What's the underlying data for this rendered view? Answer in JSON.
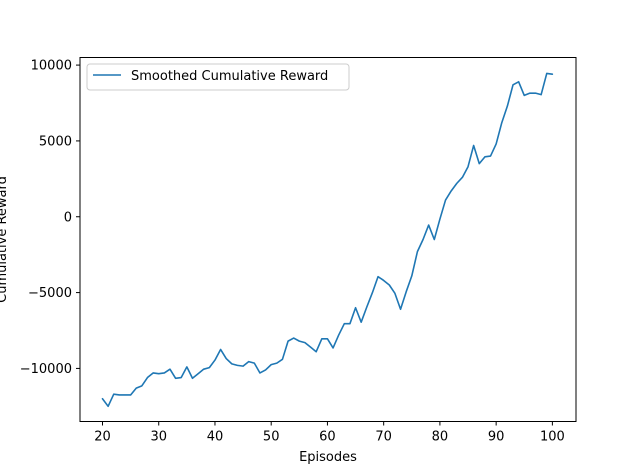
{
  "chart_data": {
    "type": "line",
    "title": "",
    "xlabel": "Episodes",
    "ylabel": "Cumulative Reward",
    "xlim": [
      16,
      104.2
    ],
    "ylim": [
      -13500,
      10500
    ],
    "xticks": [
      20,
      30,
      40,
      50,
      60,
      70,
      80,
      90,
      100
    ],
    "yticks": [
      -10000,
      -5000,
      0,
      5000,
      10000
    ],
    "ytick_labels": [
      "−10000",
      "−5000",
      "0",
      "5000",
      "10000"
    ],
    "grid": false,
    "legend_position": "upper-left",
    "colors": {
      "series": "#1f77b4"
    },
    "series": [
      {
        "name": "Smoothed Cumulative Reward",
        "x": [
          20,
          21,
          22,
          23,
          24,
          25,
          26,
          27,
          28,
          29,
          30,
          31,
          32,
          33,
          34,
          35,
          36,
          37,
          38,
          39,
          40,
          41,
          42,
          43,
          44,
          45,
          46,
          47,
          48,
          49,
          50,
          51,
          52,
          53,
          54,
          55,
          56,
          57,
          58,
          59,
          60,
          61,
          62,
          63,
          64,
          65,
          66,
          67,
          68,
          69,
          70,
          71,
          72,
          73,
          74,
          75,
          76,
          77,
          78,
          79,
          80,
          81,
          82,
          83,
          84,
          85,
          86,
          87,
          88,
          89,
          90,
          91,
          92,
          93,
          94,
          95,
          96,
          97,
          98,
          99,
          100
        ],
        "values": [
          -12000,
          -12500,
          -11700,
          -11750,
          -11750,
          -11750,
          -11300,
          -11150,
          -10600,
          -10300,
          -10350,
          -10300,
          -10050,
          -10650,
          -10600,
          -9900,
          -10650,
          -10350,
          -10050,
          -9950,
          -9450,
          -8750,
          -9350,
          -9700,
          -9800,
          -9850,
          -9550,
          -9650,
          -10300,
          -10100,
          -9750,
          -9650,
          -9400,
          -8200,
          -8000,
          -8200,
          -8300,
          -8600,
          -8900,
          -8050,
          -8050,
          -8650,
          -7800,
          -7050,
          -7050,
          -6000,
          -6950,
          -5950,
          -5000,
          -3950,
          -4200,
          -4500,
          -5050,
          -6100,
          -4950,
          -3900,
          -2300,
          -1500,
          -550,
          -1500,
          -150,
          1100,
          1700,
          2200,
          2600,
          3300,
          4700,
          3500,
          3950,
          4000,
          4800,
          6200,
          7300,
          8700,
          8900,
          8000,
          8150,
          8150,
          8050,
          9450,
          9400
        ]
      }
    ]
  }
}
